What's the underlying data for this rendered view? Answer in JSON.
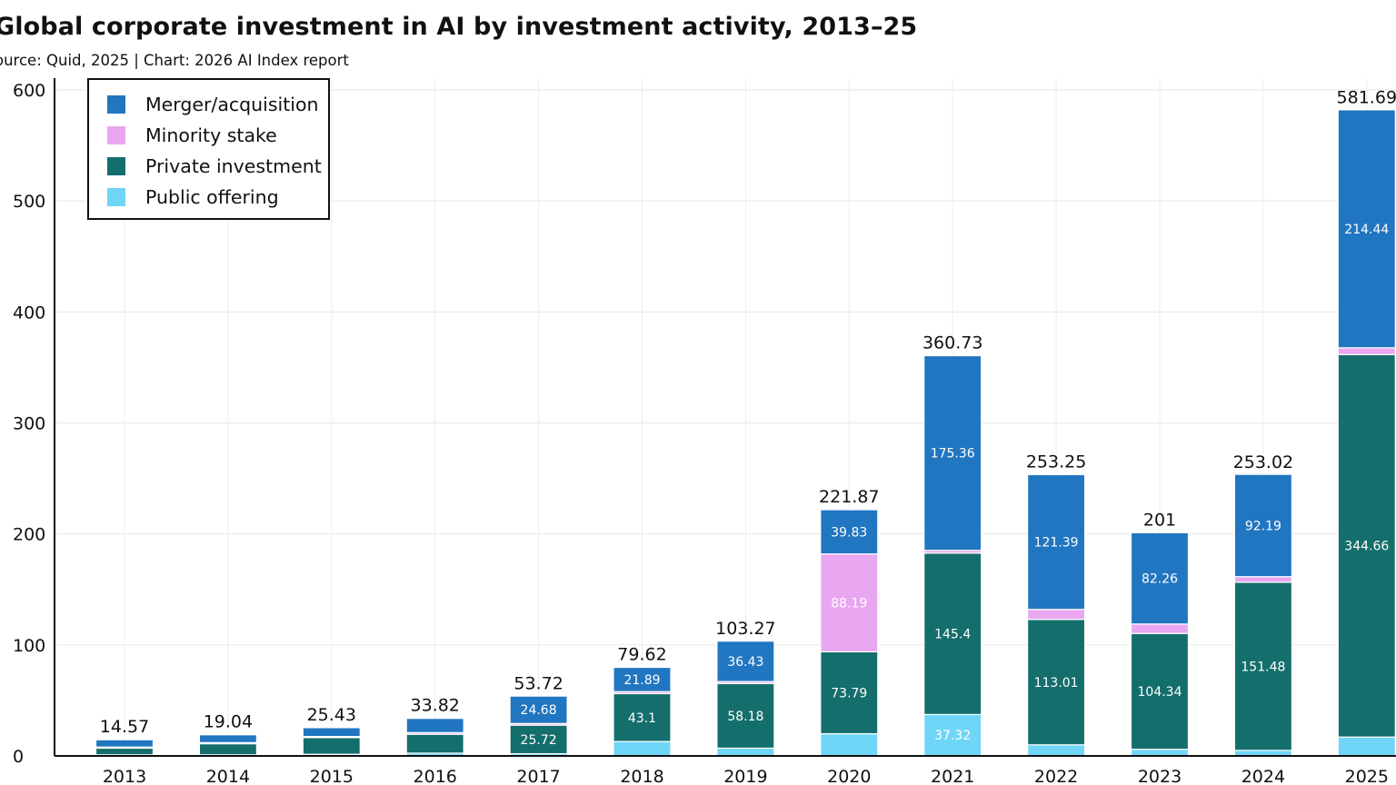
{
  "header": {
    "title": "Global corporate investment in AI by investment activity, 2013–25",
    "subtitle": "ource: Quid, 2025 | Chart: 2026 AI Index report"
  },
  "legend": {
    "items": [
      {
        "label": "Merger/acquisition",
        "color": "#2176c1"
      },
      {
        "label": "Minority stake",
        "color": "#e8a7f0"
      },
      {
        "label": "Private investment",
        "color": "#146e6c"
      },
      {
        "label": "Public offering",
        "color": "#6fd6f7"
      }
    ]
  },
  "chart_data": {
    "type": "bar",
    "stacked": true,
    "categories": [
      "2013",
      "2014",
      "2015",
      "2016",
      "2017",
      "2018",
      "2019",
      "2020",
      "2021",
      "2022",
      "2023",
      "2024",
      "2025"
    ],
    "series": [
      {
        "name": "Public offering",
        "color": "#6fd6f7",
        "values": [
          1.0,
          1.0,
          1.5,
          2.5,
          2.0,
          13.0,
          7.0,
          20.0,
          37.32,
          10.0,
          6.0,
          5.0,
          17.0
        ],
        "labels": [
          null,
          null,
          null,
          null,
          null,
          null,
          null,
          null,
          "37.32",
          null,
          null,
          null,
          null
        ]
      },
      {
        "name": "Private investment",
        "color": "#146e6c",
        "values": [
          6.0,
          10.0,
          15.0,
          17.0,
          25.72,
          43.1,
          58.18,
          73.79,
          145.4,
          113.01,
          104.34,
          151.48,
          344.66
        ],
        "labels": [
          null,
          null,
          null,
          null,
          "25.72",
          "43.1",
          "58.18",
          "73.79",
          "145.4",
          "113.01",
          "104.34",
          "151.48",
          "344.66"
        ]
      },
      {
        "name": "Minority stake",
        "color": "#e8a7f0",
        "values": [
          1.0,
          1.0,
          1.0,
          1.5,
          1.5,
          1.8,
          1.8,
          88.19,
          2.5,
          9.0,
          8.5,
          5.0,
          6.0
        ],
        "labels": [
          null,
          null,
          null,
          null,
          null,
          null,
          null,
          "88.19",
          null,
          null,
          null,
          null,
          null
        ]
      },
      {
        "name": "Merger/acquisition",
        "color": "#2176c1",
        "values": [
          6.57,
          7.04,
          7.93,
          12.82,
          24.68,
          21.89,
          36.43,
          39.83,
          175.36,
          121.39,
          82.26,
          92.19,
          214.44
        ],
        "labels": [
          null,
          null,
          null,
          null,
          "24.68",
          "21.89",
          "36.43",
          "39.83",
          "175.36",
          "121.39",
          "82.26",
          "92.19",
          "214.44"
        ]
      }
    ],
    "totals": [
      "14.57",
      "19.04",
      "25.43",
      "33.82",
      "53.72",
      "79.62",
      "103.27",
      "221.87",
      "360.73",
      "253.25",
      "201",
      "253.02",
      "581.69"
    ],
    "total_values": [
      14.57,
      19.04,
      25.43,
      33.82,
      53.72,
      79.62,
      103.27,
      221.87,
      360.73,
      253.25,
      201,
      253.02,
      581.69
    ],
    "ylim": [
      0,
      600
    ],
    "yticks": [
      "0",
      "100",
      "200",
      "300",
      "400",
      "500",
      "600"
    ],
    "ytick_values": [
      0,
      100,
      200,
      300,
      400,
      500,
      600
    ],
    "xlabel": "",
    "ylabel": "",
    "grid": true,
    "legend_position": "top-left"
  }
}
